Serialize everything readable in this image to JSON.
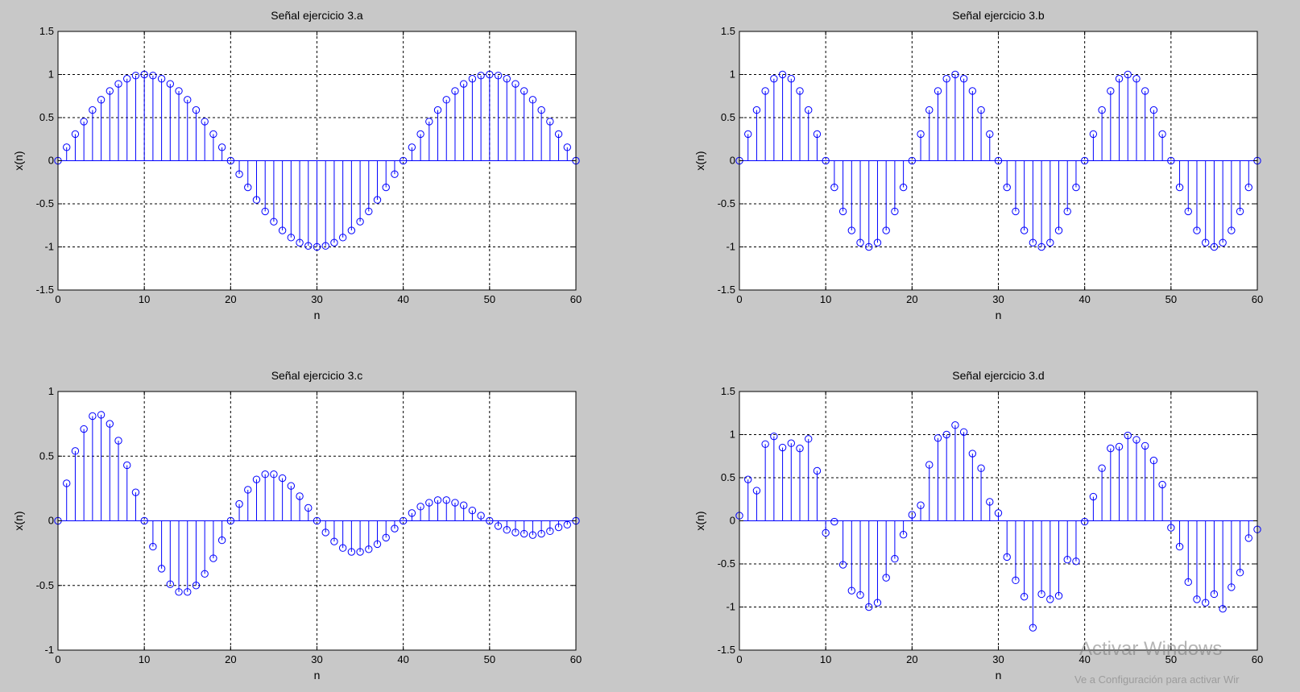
{
  "figure": {
    "background": "#c8c8c8",
    "stem_color": "#0000ff"
  },
  "watermark": {
    "title": "Activar Windows",
    "subtitle": "Ve a Configuración para activar Wir"
  },
  "chart_data": [
    {
      "type": "stem",
      "title": "Señal ejercicio 3.a",
      "xlabel": "n",
      "ylabel": "x(n)",
      "xlim": [
        0,
        60
      ],
      "ylim": [
        -1.5,
        1.5
      ],
      "xticks": [
        0,
        10,
        20,
        30,
        40,
        50,
        60
      ],
      "yticks": [
        -1.5,
        -1,
        -0.5,
        0,
        0.5,
        1,
        1.5
      ],
      "ytick_labels": [
        "-1.5",
        "-1",
        "-0.5",
        "0",
        "0.5",
        "1",
        "1.5"
      ],
      "grid": true,
      "x": [
        0,
        1,
        2,
        3,
        4,
        5,
        6,
        7,
        8,
        9,
        10,
        11,
        12,
        13,
        14,
        15,
        16,
        17,
        18,
        19,
        20,
        21,
        22,
        23,
        24,
        25,
        26,
        27,
        28,
        29,
        30,
        31,
        32,
        33,
        34,
        35,
        36,
        37,
        38,
        39,
        40,
        41,
        42,
        43,
        44,
        45,
        46,
        47,
        48,
        49,
        50,
        51,
        52,
        53,
        54,
        55,
        56,
        57,
        58,
        59,
        60
      ],
      "y": [
        0,
        0.156,
        0.309,
        0.454,
        0.588,
        0.707,
        0.809,
        0.891,
        0.951,
        0.988,
        1,
        0.988,
        0.951,
        0.891,
        0.809,
        0.707,
        0.588,
        0.454,
        0.309,
        0.156,
        0,
        -0.156,
        -0.309,
        -0.454,
        -0.588,
        -0.707,
        -0.809,
        -0.891,
        -0.951,
        -0.988,
        -1,
        -0.988,
        -0.951,
        -0.891,
        -0.809,
        -0.707,
        -0.588,
        -0.454,
        -0.309,
        -0.156,
        0,
        0.156,
        0.309,
        0.454,
        0.588,
        0.707,
        0.809,
        0.891,
        0.951,
        0.988,
        1,
        0.988,
        0.951,
        0.891,
        0.809,
        0.707,
        0.588,
        0.454,
        0.309,
        0.156,
        0
      ]
    },
    {
      "type": "stem",
      "title": "Señal ejercicio 3.b",
      "xlabel": "n",
      "ylabel": "x(n)",
      "xlim": [
        0,
        60
      ],
      "ylim": [
        -1.5,
        1.5
      ],
      "xticks": [
        0,
        10,
        20,
        30,
        40,
        50,
        60
      ],
      "yticks": [
        -1.5,
        -1,
        -0.5,
        0,
        0.5,
        1,
        1.5
      ],
      "ytick_labels": [
        "-1.5",
        "-1",
        "-0.5",
        "0",
        "0.5",
        "1",
        "1.5"
      ],
      "grid": true,
      "x": [
        0,
        1,
        2,
        3,
        4,
        5,
        6,
        7,
        8,
        9,
        10,
        11,
        12,
        13,
        14,
        15,
        16,
        17,
        18,
        19,
        20,
        21,
        22,
        23,
        24,
        25,
        26,
        27,
        28,
        29,
        30,
        31,
        32,
        33,
        34,
        35,
        36,
        37,
        38,
        39,
        40,
        41,
        42,
        43,
        44,
        45,
        46,
        47,
        48,
        49,
        50,
        51,
        52,
        53,
        54,
        55,
        56,
        57,
        58,
        59,
        60
      ],
      "y": [
        0,
        0.309,
        0.588,
        0.809,
        0.951,
        1,
        0.951,
        0.809,
        0.588,
        0.309,
        0,
        -0.309,
        -0.588,
        -0.809,
        -0.951,
        -1,
        -0.951,
        -0.809,
        -0.588,
        -0.309,
        0,
        0.309,
        0.588,
        0.809,
        0.951,
        1,
        0.951,
        0.809,
        0.588,
        0.309,
        0,
        -0.309,
        -0.588,
        -0.809,
        -0.951,
        -1,
        -0.951,
        -0.809,
        -0.588,
        -0.309,
        0,
        0.309,
        0.588,
        0.809,
        0.951,
        1,
        0.951,
        0.809,
        0.588,
        0.309,
        0,
        -0.309,
        -0.588,
        -0.809,
        -0.951,
        -1,
        -0.951,
        -0.809,
        -0.588,
        -0.309,
        0
      ]
    },
    {
      "type": "stem",
      "title": "Señal ejercicio 3.c",
      "xlabel": "n",
      "ylabel": "x(n)",
      "xlim": [
        0,
        60
      ],
      "ylim": [
        -1,
        1
      ],
      "xticks": [
        0,
        10,
        20,
        30,
        40,
        50,
        60
      ],
      "yticks": [
        -1,
        -0.5,
        0,
        0.5,
        1
      ],
      "ytick_labels": [
        "-1",
        "-0.5",
        "0",
        "0.5",
        "1"
      ],
      "grid": true,
      "x": [
        0,
        1,
        2,
        3,
        4,
        5,
        6,
        7,
        8,
        9,
        10,
        11,
        12,
        13,
        14,
        15,
        16,
        17,
        18,
        19,
        20,
        21,
        22,
        23,
        24,
        25,
        26,
        27,
        28,
        29,
        30,
        31,
        32,
        33,
        34,
        35,
        36,
        37,
        38,
        39,
        40,
        41,
        42,
        43,
        44,
        45,
        46,
        47,
        48,
        49,
        50,
        51,
        52,
        53,
        54,
        55,
        56,
        57,
        58,
        59,
        60
      ],
      "y": [
        0,
        0.29,
        0.54,
        0.71,
        0.81,
        0.82,
        0.75,
        0.62,
        0.43,
        0.22,
        0,
        -0.2,
        -0.37,
        -0.49,
        -0.55,
        -0.55,
        -0.5,
        -0.41,
        -0.29,
        -0.15,
        0,
        0.13,
        0.24,
        0.32,
        0.36,
        0.36,
        0.33,
        0.27,
        0.19,
        0.1,
        0,
        -0.09,
        -0.16,
        -0.21,
        -0.24,
        -0.24,
        -0.22,
        -0.18,
        -0.13,
        -0.06,
        0,
        0.06,
        0.11,
        0.14,
        0.16,
        0.16,
        0.14,
        0.12,
        0.08,
        0.04,
        0,
        -0.04,
        -0.07,
        -0.09,
        -0.1,
        -0.11,
        -0.1,
        -0.08,
        -0.05,
        -0.03,
        0
      ]
    },
    {
      "type": "stem",
      "title": "Señal ejercicio 3.d",
      "xlabel": "n",
      "ylabel": "x(n)",
      "xlim": [
        0,
        60
      ],
      "ylim": [
        -1.5,
        1.5
      ],
      "xticks": [
        0,
        10,
        20,
        30,
        40,
        50,
        60
      ],
      "yticks": [
        -1.5,
        -1,
        -0.5,
        0,
        0.5,
        1,
        1.5
      ],
      "ytick_labels": [
        "-1.5",
        "-1",
        "-0.5",
        "0",
        "0.5",
        "1",
        "1.5"
      ],
      "grid": true,
      "x": [
        0,
        1,
        2,
        3,
        4,
        5,
        6,
        7,
        8,
        9,
        10,
        11,
        12,
        13,
        14,
        15,
        16,
        17,
        18,
        19,
        20,
        21,
        22,
        23,
        24,
        25,
        26,
        27,
        28,
        29,
        30,
        31,
        32,
        33,
        34,
        35,
        36,
        37,
        38,
        39,
        40,
        41,
        42,
        43,
        44,
        45,
        46,
        47,
        48,
        49,
        50,
        51,
        52,
        53,
        54,
        55,
        56,
        57,
        58,
        59,
        60
      ],
      "y": [
        0.06,
        0.48,
        0.35,
        0.89,
        0.98,
        0.85,
        0.9,
        0.84,
        0.95,
        0.58,
        -0.14,
        -0.01,
        -0.51,
        -0.81,
        -0.86,
        -1.0,
        -0.95,
        -0.66,
        -0.44,
        -0.16,
        0.07,
        0.18,
        0.65,
        0.96,
        1.0,
        1.11,
        1.03,
        0.78,
        0.61,
        0.22,
        0.09,
        -0.42,
        -0.69,
        -0.88,
        -1.24,
        -0.85,
        -0.91,
        -0.87,
        -0.45,
        -0.47,
        -0.01,
        0.28,
        0.61,
        0.84,
        0.86,
        0.99,
        0.94,
        0.87,
        0.7,
        0.42,
        -0.08,
        -0.3,
        -0.71,
        -0.91,
        -0.95,
        -0.85,
        -1.02,
        -0.77,
        -0.6,
        -0.2,
        -0.1
      ]
    }
  ]
}
